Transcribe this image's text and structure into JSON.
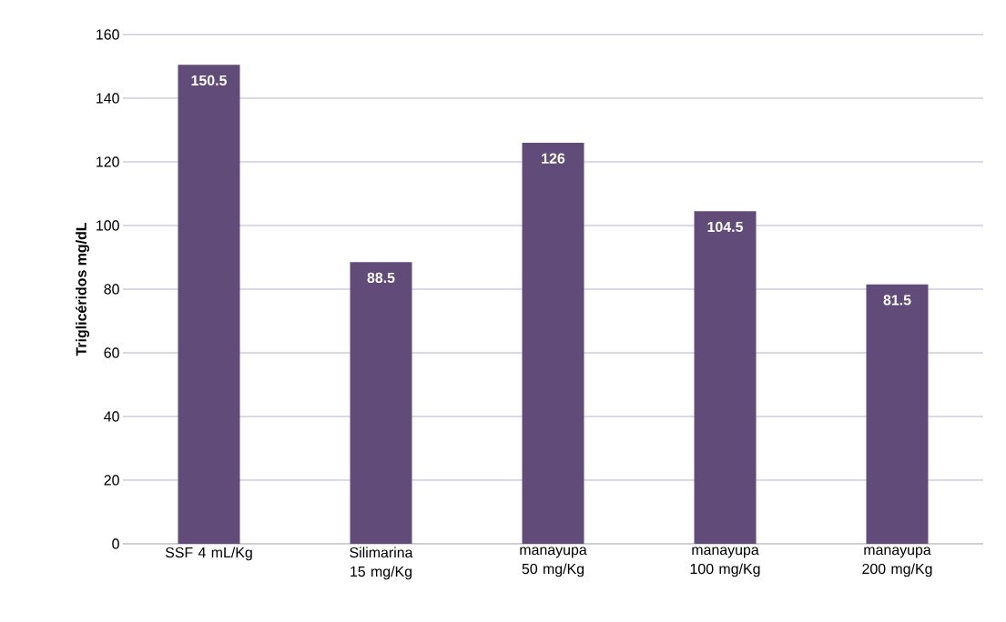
{
  "chart_data": {
    "type": "bar",
    "ylabel": "Triglicéridos mg/dL",
    "categories": [
      "SSF 4 mL/Kg",
      "Silimarina 15 mg/Kg",
      "manayupa 50 mg/Kg",
      "manayupa 100 mg/Kg",
      "manayupa 200 mg/Kg"
    ],
    "values": [
      150.5,
      88.5,
      126,
      104.5,
      81.5
    ],
    "color": "#614b79",
    "ylim": [
      0,
      160
    ],
    "yticks": [
      0,
      20,
      40,
      60,
      80,
      100,
      120,
      140,
      160
    ],
    "grid": "y",
    "data_labels": true
  }
}
